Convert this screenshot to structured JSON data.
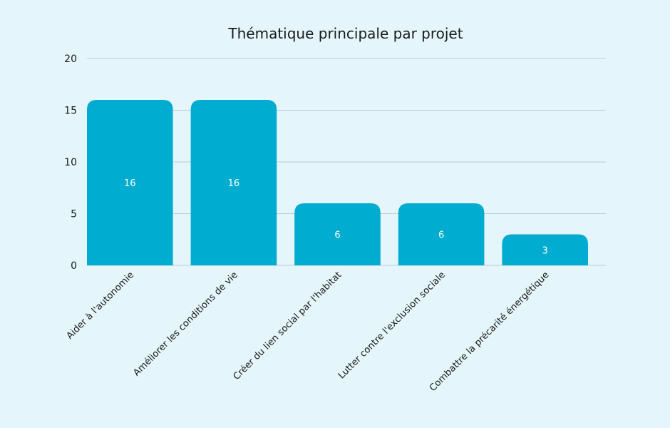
{
  "colors": {
    "background": "#e4f5fb",
    "bar": "#00acd0",
    "grid": "#b7cdd5",
    "axis_text": "#1a1a1a",
    "value_text": "#ffffff"
  },
  "chart_data": {
    "type": "bar",
    "title": "Thématique principale par projet",
    "xlabel": "",
    "ylabel": "",
    "categories": [
      "Aider à l'autonomie",
      "Améliorer les conditions de vie",
      "Créer du lien social par l'habitat",
      "Lutter contre l'exclusion sociale",
      "Combattre la précarité énergétique"
    ],
    "values": [
      16,
      16,
      6,
      6,
      3
    ],
    "ylim": [
      0,
      20
    ],
    "yticks": [
      0,
      5,
      10,
      15,
      20
    ],
    "grid": true,
    "legend": "none",
    "data_labels": true
  }
}
